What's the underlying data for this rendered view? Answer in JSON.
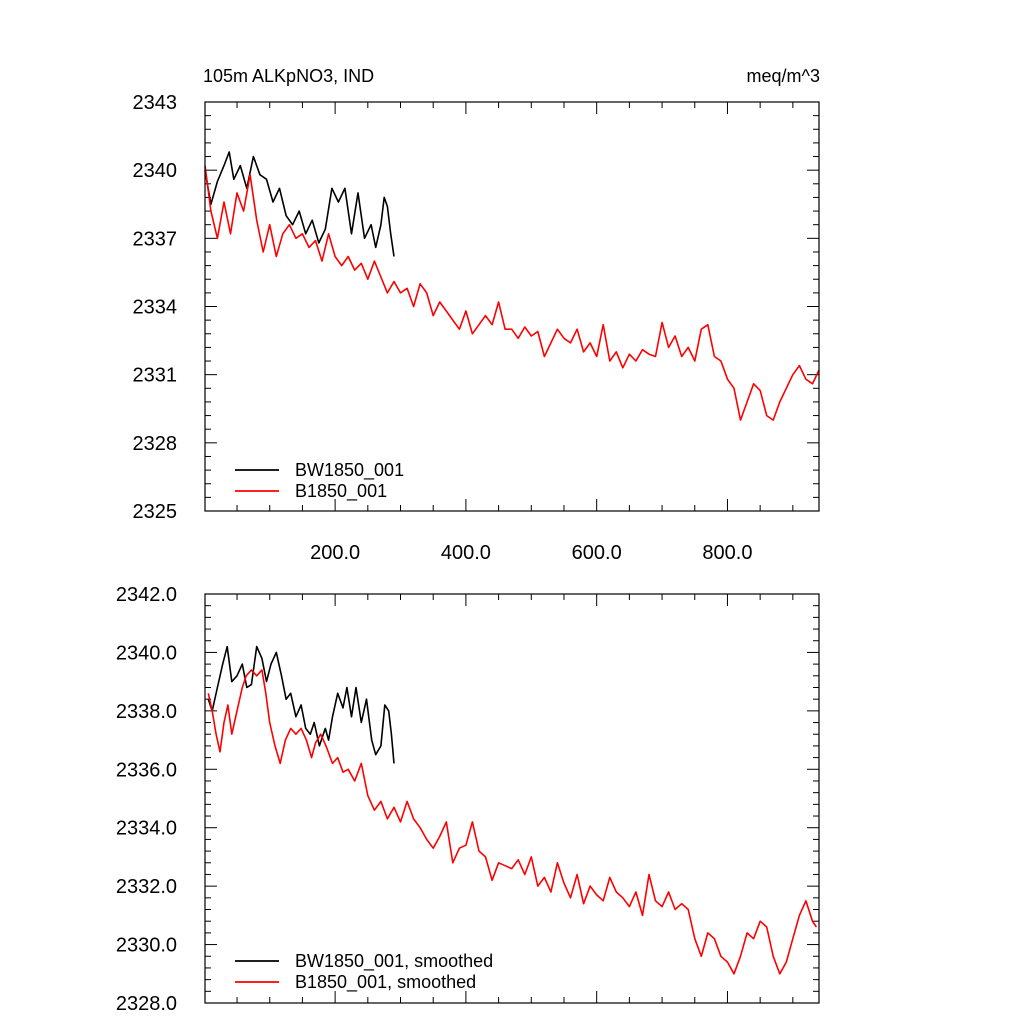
{
  "chart_data": [
    {
      "type": "line",
      "title": "105m ALKpNO3, IND",
      "units": "meq/m^3",
      "xlabel": "",
      "ylabel": "",
      "xlim": [
        1,
        940
      ],
      "ylim": [
        2325,
        2343
      ],
      "x_ticks": [
        200,
        400,
        600,
        800
      ],
      "x_tick_labels": [
        "200.0",
        "400.0",
        "600.0",
        "800.0"
      ],
      "y_ticks": [
        2325,
        2328,
        2331,
        2334,
        2337,
        2340,
        2343
      ],
      "y_tick_labels": [
        "2325",
        "2328",
        "2331",
        "2334",
        "2337",
        "2340",
        "2343"
      ],
      "grid": false,
      "legend_position": "bottom-left",
      "series": [
        {
          "name": "BW1850_001",
          "color": "#000000",
          "x": [
            1,
            10,
            20,
            30,
            38,
            45,
            55,
            65,
            75,
            85,
            95,
            105,
            115,
            125,
            135,
            145,
            155,
            165,
            175,
            185,
            195,
            205,
            215,
            225,
            235,
            245,
            255,
            262,
            270,
            275,
            280,
            285,
            290
          ],
          "y": [
            2340.0,
            2338.5,
            2339.5,
            2340.2,
            2340.8,
            2339.6,
            2340.2,
            2339.2,
            2340.6,
            2339.8,
            2339.6,
            2338.6,
            2339.2,
            2338.0,
            2337.6,
            2338.2,
            2337.2,
            2337.8,
            2336.8,
            2337.4,
            2339.2,
            2338.6,
            2339.2,
            2337.2,
            2339.0,
            2337.0,
            2337.6,
            2336.6,
            2337.6,
            2338.8,
            2338.4,
            2337.2,
            2336.2
          ]
        },
        {
          "name": "B1850_001",
          "color": "#ff0000",
          "x": [
            1,
            10,
            20,
            30,
            40,
            50,
            60,
            70,
            80,
            90,
            100,
            110,
            120,
            130,
            140,
            150,
            160,
            170,
            180,
            190,
            200,
            210,
            220,
            230,
            240,
            250,
            260,
            270,
            280,
            290,
            300,
            310,
            320,
            330,
            340,
            350,
            360,
            370,
            380,
            390,
            400,
            410,
            420,
            430,
            440,
            450,
            460,
            470,
            480,
            490,
            500,
            510,
            520,
            530,
            540,
            550,
            560,
            570,
            580,
            590,
            600,
            610,
            620,
            630,
            640,
            650,
            660,
            670,
            680,
            690,
            700,
            710,
            720,
            730,
            740,
            750,
            760,
            770,
            780,
            790,
            800,
            810,
            820,
            830,
            840,
            850,
            860,
            870,
            880,
            890,
            900,
            910,
            920,
            930,
            940
          ],
          "y": [
            2340.2,
            2338.2,
            2337.0,
            2338.6,
            2337.2,
            2339.0,
            2338.2,
            2339.8,
            2337.8,
            2336.4,
            2337.6,
            2336.2,
            2337.2,
            2337.6,
            2337.0,
            2337.2,
            2336.6,
            2336.9,
            2336.0,
            2337.2,
            2336.2,
            2335.8,
            2336.2,
            2335.6,
            2335.9,
            2335.2,
            2336.0,
            2335.3,
            2334.6,
            2335.1,
            2334.6,
            2334.8,
            2334.0,
            2335.0,
            2334.6,
            2333.6,
            2334.2,
            2333.8,
            2333.4,
            2333.0,
            2333.8,
            2332.8,
            2333.2,
            2333.6,
            2333.2,
            2334.2,
            2333.0,
            2333.0,
            2332.6,
            2333.1,
            2332.7,
            2332.9,
            2331.8,
            2332.4,
            2333.0,
            2332.6,
            2332.4,
            2333.0,
            2332.0,
            2332.4,
            2331.8,
            2333.2,
            2331.6,
            2332.0,
            2331.3,
            2331.9,
            2331.6,
            2332.1,
            2331.9,
            2331.8,
            2333.3,
            2332.2,
            2332.7,
            2331.8,
            2332.2,
            2331.6,
            2333.0,
            2333.2,
            2331.8,
            2331.6,
            2330.8,
            2330.4,
            2329.0,
            2329.8,
            2330.6,
            2330.3,
            2329.2,
            2329.0,
            2329.8,
            2330.4,
            2331.0,
            2331.4,
            2330.8,
            2330.6,
            2331.2
          ]
        }
      ]
    },
    {
      "type": "line",
      "title": "",
      "xlabel": "",
      "ylabel": "",
      "xlim": [
        1,
        940
      ],
      "ylim": [
        2328,
        2342
      ],
      "x_ticks": [
        200,
        400,
        600,
        800
      ],
      "x_tick_labels": [],
      "y_ticks": [
        2328,
        2330,
        2332,
        2334,
        2336,
        2338,
        2340,
        2342
      ],
      "y_tick_labels": [
        "2328.0",
        "2330.0",
        "2332.0",
        "2334.0",
        "2336.0",
        "2338.0",
        "2340.0",
        "2342.0"
      ],
      "grid": false,
      "legend_position": "bottom-left",
      "series": [
        {
          "name": "BW1850_001, smoothed",
          "color": "#000000",
          "x": [
            6,
            12,
            20,
            28,
            35,
            42,
            50,
            58,
            65,
            72,
            80,
            88,
            95,
            102,
            110,
            118,
            125,
            132,
            140,
            148,
            155,
            162,
            168,
            176,
            185,
            190,
            196,
            204,
            212,
            218,
            225,
            232,
            240,
            248,
            256,
            262,
            270,
            276,
            282,
            286,
            290
          ],
          "y": [
            2338.4,
            2338.0,
            2338.8,
            2339.6,
            2340.2,
            2339.0,
            2339.2,
            2339.6,
            2338.8,
            2338.9,
            2340.2,
            2339.8,
            2339.0,
            2339.6,
            2340.0,
            2339.2,
            2338.4,
            2338.6,
            2337.8,
            2338.2,
            2337.4,
            2337.2,
            2337.6,
            2336.8,
            2337.4,
            2337.0,
            2337.8,
            2338.6,
            2338.1,
            2338.8,
            2337.8,
            2338.8,
            2337.6,
            2338.4,
            2337.0,
            2336.5,
            2336.8,
            2338.2,
            2338.0,
            2337.2,
            2336.2
          ]
        },
        {
          "name": "B1850_001, smoothed",
          "color": "#ff0000",
          "x": [
            6,
            12,
            18,
            24,
            30,
            36,
            42,
            50,
            58,
            64,
            72,
            80,
            88,
            94,
            100,
            108,
            116,
            124,
            132,
            140,
            148,
            156,
            164,
            170,
            178,
            186,
            196,
            204,
            212,
            220,
            230,
            240,
            250,
            260,
            270,
            280,
            290,
            300,
            310,
            320,
            330,
            340,
            350,
            360,
            370,
            380,
            390,
            400,
            410,
            420,
            430,
            440,
            450,
            460,
            470,
            480,
            490,
            500,
            510,
            520,
            530,
            540,
            550,
            560,
            570,
            580,
            590,
            600,
            610,
            620,
            630,
            640,
            650,
            660,
            670,
            680,
            690,
            700,
            710,
            720,
            730,
            740,
            750,
            760,
            770,
            780,
            790,
            800,
            810,
            820,
            830,
            840,
            850,
            860,
            870,
            880,
            890,
            900,
            910,
            920,
            930,
            936
          ],
          "y": [
            2338.6,
            2338.0,
            2337.2,
            2336.6,
            2337.6,
            2338.2,
            2337.2,
            2338.0,
            2338.8,
            2339.2,
            2339.4,
            2339.2,
            2339.4,
            2338.6,
            2337.6,
            2336.8,
            2336.2,
            2337.0,
            2337.4,
            2337.2,
            2337.4,
            2337.0,
            2336.4,
            2336.9,
            2337.2,
            2336.8,
            2336.2,
            2336.4,
            2335.9,
            2336.0,
            2335.6,
            2336.2,
            2335.1,
            2334.6,
            2334.9,
            2334.3,
            2334.7,
            2334.2,
            2334.9,
            2334.3,
            2334.0,
            2333.6,
            2333.3,
            2333.7,
            2334.2,
            2332.8,
            2333.3,
            2333.4,
            2334.2,
            2333.2,
            2333.0,
            2332.2,
            2332.8,
            2332.7,
            2332.6,
            2332.9,
            2332.4,
            2333.0,
            2332.0,
            2332.3,
            2331.8,
            2332.8,
            2332.1,
            2331.6,
            2332.4,
            2331.4,
            2332.0,
            2331.7,
            2331.5,
            2332.3,
            2331.8,
            2331.6,
            2331.3,
            2331.8,
            2331.0,
            2332.4,
            2331.5,
            2331.3,
            2331.8,
            2331.2,
            2331.4,
            2331.2,
            2330.2,
            2329.6,
            2330.4,
            2330.2,
            2329.6,
            2329.4,
            2329.0,
            2329.6,
            2330.4,
            2330.2,
            2330.8,
            2330.6,
            2329.6,
            2329.0,
            2329.4,
            2330.2,
            2331.0,
            2331.5,
            2330.8,
            2330.6
          ]
        }
      ]
    }
  ]
}
